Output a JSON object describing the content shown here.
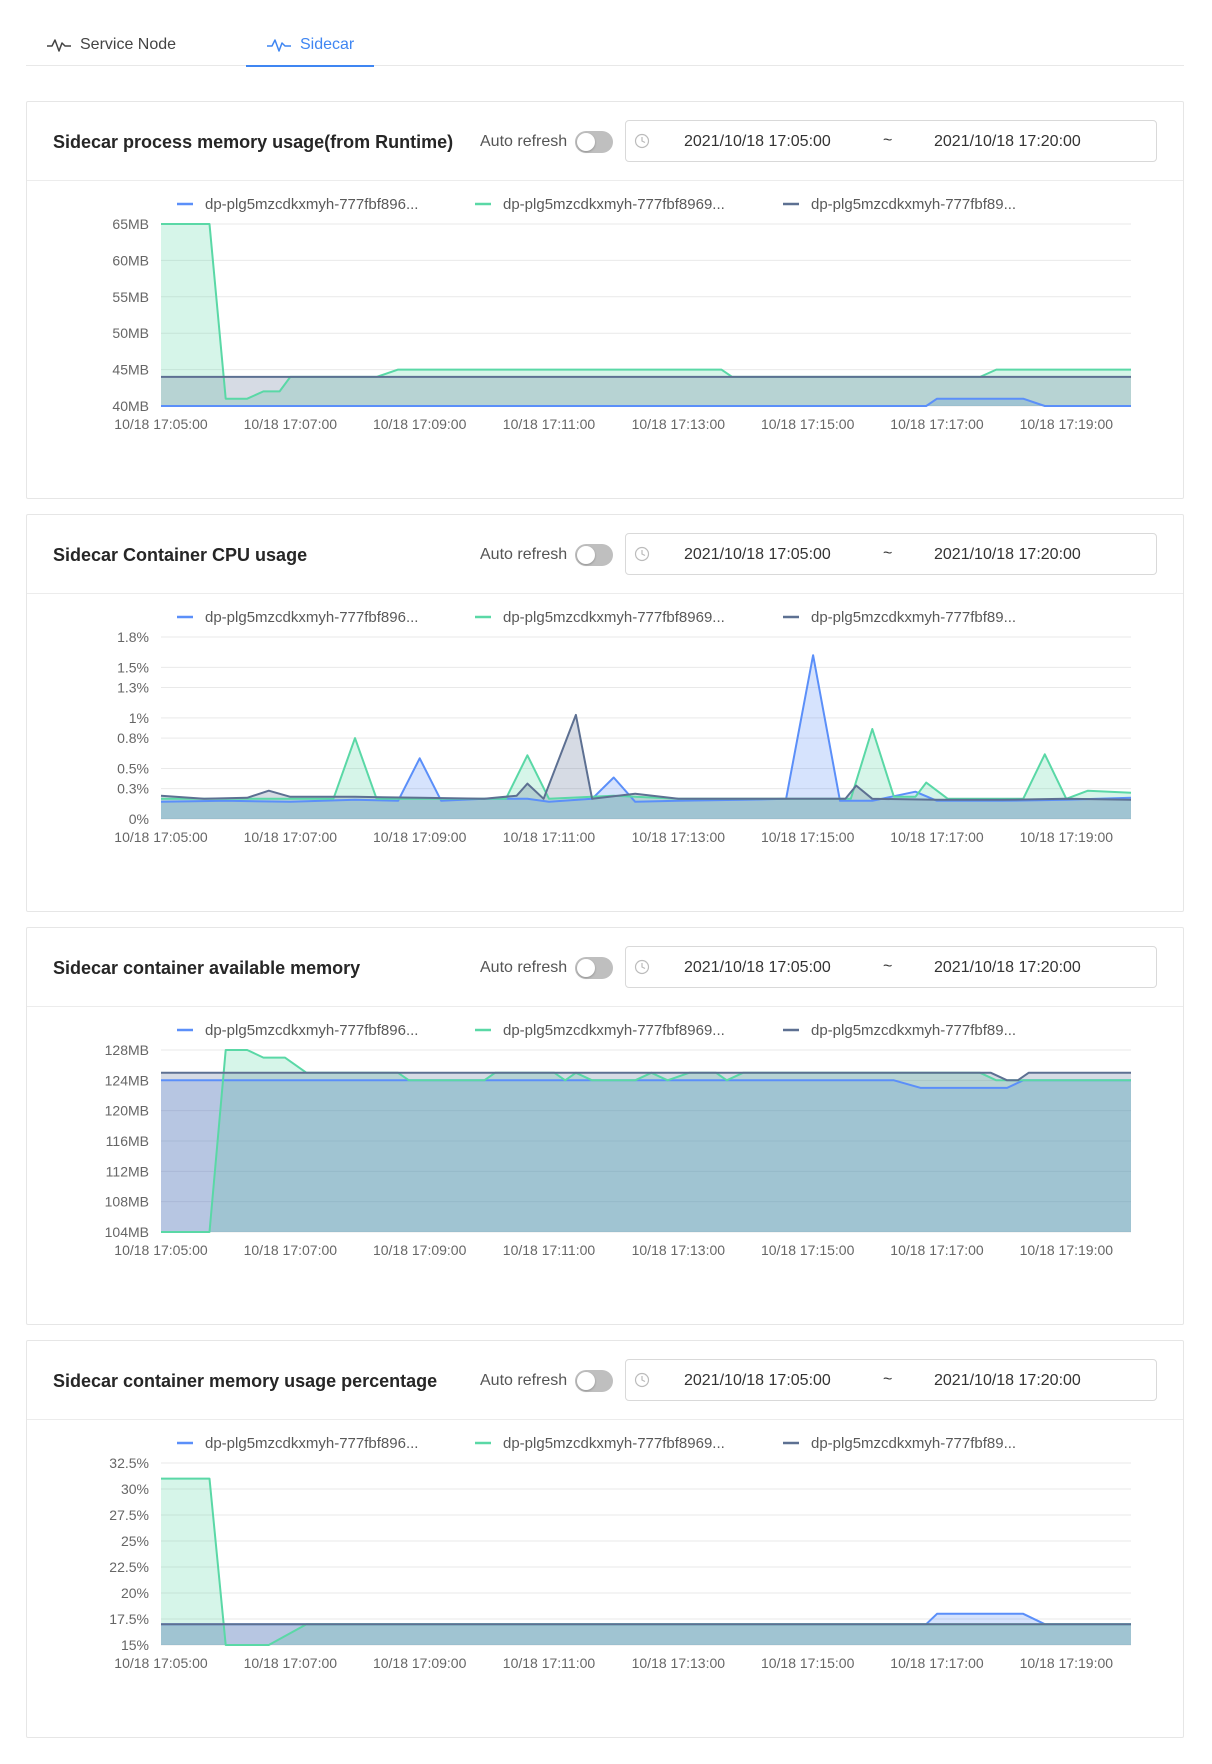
{
  "tabs": [
    {
      "label": "Service Node",
      "icon": "activity-icon",
      "active": false
    },
    {
      "label": "Sidecar",
      "icon": "activity-icon",
      "active": true
    }
  ],
  "colors": {
    "blue": "#5b8ff9",
    "green": "#5ad8a6",
    "slate": "#5d7092",
    "accent": "#3f86f2"
  },
  "panels": [
    {
      "title": "Sidecar process memory usage(from Runtime)",
      "auto_refresh_label": "Auto refresh",
      "auto_refresh_on": false,
      "range": {
        "start": "2021/10/18 17:05:00",
        "separator": "~",
        "end": "2021/10/18 17:20:00"
      }
    },
    {
      "title": "Sidecar Container CPU usage",
      "auto_refresh_label": "Auto refresh",
      "auto_refresh_on": false,
      "range": {
        "start": "2021/10/18 17:05:00",
        "separator": "~",
        "end": "2021/10/18 17:20:00"
      }
    },
    {
      "title": "Sidecar container available memory",
      "auto_refresh_label": "Auto refresh",
      "auto_refresh_on": false,
      "range": {
        "start": "2021/10/18 17:05:00",
        "separator": "~",
        "end": "2021/10/18 17:20:00"
      }
    },
    {
      "title": "Sidecar container memory usage percentage",
      "auto_refresh_label": "Auto refresh",
      "auto_refresh_on": false,
      "range": {
        "start": "2021/10/18 17:05:00",
        "separator": "~",
        "end": "2021/10/18 17:20:00"
      }
    }
  ],
  "chart_data": [
    {
      "type": "area",
      "legend_position": "top",
      "grid": true,
      "xlim": [
        "10/18 17:05:00",
        "10/18 17:20:00"
      ],
      "xticks": [
        "10/18 17:05:00",
        "10/18 17:07:00",
        "10/18 17:09:00",
        "10/18 17:11:00",
        "10/18 17:13:00",
        "10/18 17:15:00",
        "10/18 17:17:00",
        "10/18 17:19:00"
      ],
      "ylim": [
        40,
        65
      ],
      "yticks": [
        {
          "v": 40,
          "label": "40MB"
        },
        {
          "v": 45,
          "label": "45MB"
        },
        {
          "v": 50,
          "label": "50MB"
        },
        {
          "v": 55,
          "label": "55MB"
        },
        {
          "v": 60,
          "label": "60MB"
        },
        {
          "v": 65,
          "label": "65MB"
        }
      ],
      "series": [
        {
          "name": "dp-plg5mzcdkxmyh-777fbf896...",
          "color": "#5b8ff9",
          "points": [
            [
              "17:05:00",
              40
            ],
            [
              "17:16:50",
              40
            ],
            [
              "17:17:00",
              41
            ],
            [
              "17:18:20",
              41
            ],
            [
              "17:18:40",
              40
            ],
            [
              "17:20:00",
              40
            ]
          ]
        },
        {
          "name": "dp-plg5mzcdkxmyh-777fbf8969...",
          "color": "#5ad8a6",
          "points": [
            [
              "17:05:00",
              65
            ],
            [
              "17:05:45",
              65
            ],
            [
              "17:06:00",
              41
            ],
            [
              "17:06:20",
              41
            ],
            [
              "17:06:35",
              42
            ],
            [
              "17:06:50",
              42
            ],
            [
              "17:07:00",
              44
            ],
            [
              "17:08:20",
              44
            ],
            [
              "17:08:40",
              45
            ],
            [
              "17:13:40",
              45
            ],
            [
              "17:13:50",
              44
            ],
            [
              "17:17:40",
              44
            ],
            [
              "17:17:55",
              45
            ],
            [
              "17:20:00",
              45
            ]
          ]
        },
        {
          "name": "dp-plg5mzcdkxmyh-777fbf89...",
          "color": "#5d7092",
          "points": [
            [
              "17:05:00",
              44
            ],
            [
              "17:20:00",
              44
            ]
          ]
        }
      ]
    },
    {
      "type": "area",
      "legend_position": "top",
      "grid": true,
      "xlim": [
        "10/18 17:05:00",
        "10/18 17:20:00"
      ],
      "xticks": [
        "10/18 17:05:00",
        "10/18 17:07:00",
        "10/18 17:09:00",
        "10/18 17:11:00",
        "10/18 17:13:00",
        "10/18 17:15:00",
        "10/18 17:17:00",
        "10/18 17:19:00"
      ],
      "ylim": [
        0,
        1.8
      ],
      "yticks": [
        {
          "v": 0,
          "label": "0%"
        },
        {
          "v": 0.3,
          "label": "0.3%"
        },
        {
          "v": 0.5,
          "label": "0.5%"
        },
        {
          "v": 0.8,
          "label": "0.8%"
        },
        {
          "v": 1,
          "label": "1%"
        },
        {
          "v": 1.3,
          "label": "1.3%"
        },
        {
          "v": 1.5,
          "label": "1.5%"
        },
        {
          "v": 1.8,
          "label": "1.8%"
        }
      ],
      "series": [
        {
          "name": "dp-plg5mzcdkxmyh-777fbf896...",
          "color": "#5b8ff9",
          "points": [
            [
              "17:05:00",
              0.17
            ],
            [
              "17:06:00",
              0.18
            ],
            [
              "17:07:00",
              0.17
            ],
            [
              "17:08:00",
              0.19
            ],
            [
              "17:08:40",
              0.18
            ],
            [
              "17:09:00",
              0.6
            ],
            [
              "17:09:20",
              0.18
            ],
            [
              "17:10:00",
              0.2
            ],
            [
              "17:10:40",
              0.2
            ],
            [
              "17:11:00",
              0.17
            ],
            [
              "17:11:40",
              0.2
            ],
            [
              "17:12:00",
              0.41
            ],
            [
              "17:12:20",
              0.17
            ],
            [
              "17:13:00",
              0.18
            ],
            [
              "17:14:00",
              0.19
            ],
            [
              "17:14:40",
              0.2
            ],
            [
              "17:15:05",
              1.62
            ],
            [
              "17:15:30",
              0.18
            ],
            [
              "17:16:00",
              0.18
            ],
            [
              "17:16:40",
              0.27
            ],
            [
              "17:17:00",
              0.18
            ],
            [
              "17:18:00",
              0.18
            ],
            [
              "17:19:00",
              0.19
            ],
            [
              "17:20:00",
              0.21
            ]
          ]
        },
        {
          "name": "dp-plg5mzcdkxmyh-777fbf8969...",
          "color": "#5ad8a6",
          "points": [
            [
              "17:05:00",
              0.2
            ],
            [
              "17:07:00",
              0.2
            ],
            [
              "17:07:40",
              0.2
            ],
            [
              "17:08:00",
              0.8
            ],
            [
              "17:08:20",
              0.2
            ],
            [
              "17:09:40",
              0.2
            ],
            [
              "17:10:20",
              0.2
            ],
            [
              "17:10:40",
              0.63
            ],
            [
              "17:11:00",
              0.2
            ],
            [
              "17:12:00",
              0.23
            ],
            [
              "17:13:00",
              0.2
            ],
            [
              "17:15:00",
              0.2
            ],
            [
              "17:15:40",
              0.2
            ],
            [
              "17:16:00",
              0.89
            ],
            [
              "17:16:20",
              0.22
            ],
            [
              "17:16:40",
              0.22
            ],
            [
              "17:16:50",
              0.36
            ],
            [
              "17:17:10",
              0.2
            ],
            [
              "17:18:20",
              0.2
            ],
            [
              "17:18:40",
              0.64
            ],
            [
              "17:19:00",
              0.2
            ],
            [
              "17:19:20",
              0.28
            ],
            [
              "17:20:00",
              0.26
            ]
          ]
        },
        {
          "name": "dp-plg5mzcdkxmyh-777fbf89...",
          "color": "#5d7092",
          "points": [
            [
              "17:05:00",
              0.23
            ],
            [
              "17:05:40",
              0.2
            ],
            [
              "17:06:20",
              0.21
            ],
            [
              "17:06:40",
              0.28
            ],
            [
              "17:07:00",
              0.22
            ],
            [
              "17:08:00",
              0.22
            ],
            [
              "17:09:00",
              0.21
            ],
            [
              "17:10:00",
              0.2
            ],
            [
              "17:10:30",
              0.23
            ],
            [
              "17:10:40",
              0.35
            ],
            [
              "17:10:55",
              0.2
            ],
            [
              "17:11:25",
              1.03
            ],
            [
              "17:11:40",
              0.2
            ],
            [
              "17:12:20",
              0.25
            ],
            [
              "17:13:00",
              0.2
            ],
            [
              "17:14:00",
              0.2
            ],
            [
              "17:15:00",
              0.2
            ],
            [
              "17:15:35",
              0.2
            ],
            [
              "17:15:45",
              0.33
            ],
            [
              "17:16:00",
              0.2
            ],
            [
              "17:17:00",
              0.19
            ],
            [
              "17:18:00",
              0.19
            ],
            [
              "17:19:00",
              0.2
            ],
            [
              "17:20:00",
              0.19
            ]
          ]
        }
      ]
    },
    {
      "type": "area",
      "legend_position": "top",
      "grid": true,
      "xlim": [
        "10/18 17:05:00",
        "10/18 17:20:00"
      ],
      "xticks": [
        "10/18 17:05:00",
        "10/18 17:07:00",
        "10/18 17:09:00",
        "10/18 17:11:00",
        "10/18 17:13:00",
        "10/18 17:15:00",
        "10/18 17:17:00",
        "10/18 17:19:00"
      ],
      "ylim": [
        104,
        128
      ],
      "yticks": [
        {
          "v": 104,
          "label": "104MB"
        },
        {
          "v": 108,
          "label": "108MB"
        },
        {
          "v": 112,
          "label": "112MB"
        },
        {
          "v": 116,
          "label": "116MB"
        },
        {
          "v": 120,
          "label": "120MB"
        },
        {
          "v": 124,
          "label": "124MB"
        },
        {
          "v": 128,
          "label": "128MB"
        }
      ],
      "series": [
        {
          "name": "dp-plg5mzcdkxmyh-777fbf896...",
          "color": "#5b8ff9",
          "points": [
            [
              "17:05:00",
              124
            ],
            [
              "17:16:20",
              124
            ],
            [
              "17:16:45",
              123
            ],
            [
              "17:18:05",
              123
            ],
            [
              "17:18:20",
              124
            ],
            [
              "17:20:00",
              124
            ]
          ]
        },
        {
          "name": "dp-plg5mzcdkxmyh-777fbf8969...",
          "color": "#5ad8a6",
          "points": [
            [
              "17:05:00",
              104
            ],
            [
              "17:05:45",
              104
            ],
            [
              "17:06:00",
              128
            ],
            [
              "17:06:20",
              128
            ],
            [
              "17:06:35",
              127
            ],
            [
              "17:06:55",
              127
            ],
            [
              "17:07:15",
              125
            ],
            [
              "17:08:40",
              125
            ],
            [
              "17:08:50",
              124
            ],
            [
              "17:10:00",
              124
            ],
            [
              "17:10:10",
              125
            ],
            [
              "17:11:05",
              125
            ],
            [
              "17:11:15",
              124
            ],
            [
              "17:11:25",
              125
            ],
            [
              "17:11:40",
              124
            ],
            [
              "17:12:20",
              124
            ],
            [
              "17:12:35",
              125
            ],
            [
              "17:12:50",
              124
            ],
            [
              "17:13:10",
              125
            ],
            [
              "17:13:35",
              125
            ],
            [
              "17:13:45",
              124
            ],
            [
              "17:14:00",
              125
            ],
            [
              "17:17:00",
              125
            ],
            [
              "17:17:40",
              125
            ],
            [
              "17:17:55",
              124
            ],
            [
              "17:20:00",
              124
            ]
          ]
        },
        {
          "name": "dp-plg5mzcdkxmyh-777fbf89...",
          "color": "#5d7092",
          "points": [
            [
              "17:05:00",
              125
            ],
            [
              "17:17:50",
              125
            ],
            [
              "17:18:05",
              124
            ],
            [
              "17:18:15",
              124
            ],
            [
              "17:18:25",
              125
            ],
            [
              "17:20:00",
              125
            ]
          ]
        }
      ]
    },
    {
      "type": "area",
      "legend_position": "top",
      "grid": true,
      "xlim": [
        "10/18 17:05:00",
        "10/18 17:20:00"
      ],
      "xticks": [
        "10/18 17:05:00",
        "10/18 17:07:00",
        "10/18 17:09:00",
        "10/18 17:11:00",
        "10/18 17:13:00",
        "10/18 17:15:00",
        "10/18 17:17:00",
        "10/18 17:19:00"
      ],
      "ylim": [
        15,
        32.5
      ],
      "yticks": [
        {
          "v": 15,
          "label": "15%"
        },
        {
          "v": 17.5,
          "label": "17.5%"
        },
        {
          "v": 20,
          "label": "20%"
        },
        {
          "v": 22.5,
          "label": "22.5%"
        },
        {
          "v": 25,
          "label": "25%"
        },
        {
          "v": 27.5,
          "label": "27.5%"
        },
        {
          "v": 30,
          "label": "30%"
        },
        {
          "v": 32.5,
          "label": "32.5%"
        }
      ],
      "series": [
        {
          "name": "dp-plg5mzcdkxmyh-777fbf896...",
          "color": "#5b8ff9",
          "points": [
            [
              "17:05:00",
              17
            ],
            [
              "17:16:50",
              17
            ],
            [
              "17:17:00",
              18
            ],
            [
              "17:18:20",
              18
            ],
            [
              "17:18:40",
              17
            ],
            [
              "17:20:00",
              17
            ]
          ]
        },
        {
          "name": "dp-plg5mzcdkxmyh-777fbf8969...",
          "color": "#5ad8a6",
          "points": [
            [
              "17:05:00",
              31
            ],
            [
              "17:05:45",
              31
            ],
            [
              "17:06:00",
              15
            ],
            [
              "17:06:40",
              15
            ],
            [
              "17:07:15",
              17
            ],
            [
              "17:20:00",
              17
            ]
          ]
        },
        {
          "name": "dp-plg5mzcdkxmyh-777fbf89...",
          "color": "#5d7092",
          "points": [
            [
              "17:05:00",
              17
            ],
            [
              "17:20:00",
              17
            ]
          ]
        }
      ]
    }
  ]
}
